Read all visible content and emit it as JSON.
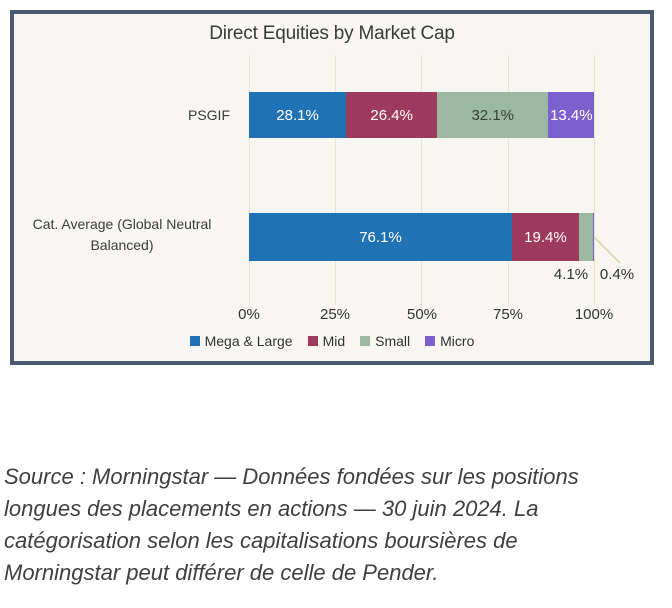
{
  "chart_panel": {
    "border_color": "#4B5970",
    "background": "#F7F6F3",
    "gridline_color": "#EAE4CE",
    "leader_line_color": "#D8D29C"
  },
  "chart_data": {
    "type": "bar",
    "orientation": "horizontal",
    "stacked": true,
    "title": "Direct Equities by Market Cap",
    "categories": [
      "PSGIF",
      "Cat. Average (Global Neutral Balanced)"
    ],
    "series": [
      {
        "name": "Mega & Large",
        "color": "#1F72B4",
        "values": [
          28.1,
          76.1
        ]
      },
      {
        "name": "Mid",
        "color": "#9E3A5D",
        "values": [
          26.4,
          19.4
        ]
      },
      {
        "name": "Small",
        "color": "#9BB8A3",
        "values": [
          32.1,
          4.1
        ]
      },
      {
        "name": "Micro",
        "color": "#7C61CE",
        "values": [
          13.4,
          0.4
        ]
      }
    ],
    "x_ticks": [
      "0%",
      "25%",
      "50%",
      "75%",
      "100%"
    ],
    "xlim": [
      0,
      100
    ],
    "grid": true,
    "legend_position": "bottom"
  },
  "chart": {
    "value_labels": [
      [
        "28.1%",
        "26.4%",
        "32.1%",
        "13.4%"
      ],
      [
        "76.1%",
        "19.4%",
        "4.1%",
        "0.4%"
      ]
    ]
  },
  "source_note": {
    "lines": [
      "Source : Morningstar — Données fondées sur les positions",
      "longues des placements en actions — 30 juin 2024. La",
      "catégorisation selon les capitalisations boursières de",
      "Morningstar peut différer de celle de Pender."
    ]
  }
}
